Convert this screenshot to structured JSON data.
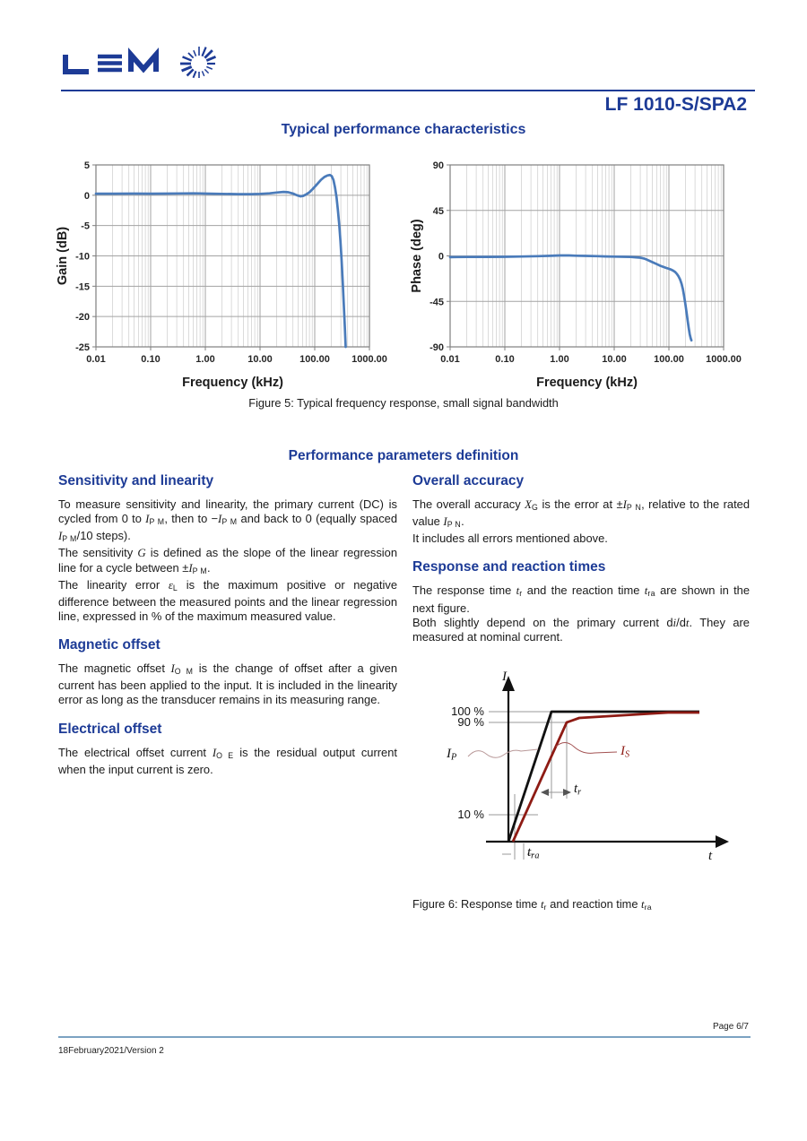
{
  "page": {
    "brand": "LEM",
    "product": "LF 1010-S/SPA2",
    "section1_title": "Typical performance characteristics",
    "figure5_caption": "Figure 5: Typical frequency response, small signal bandwidth",
    "section2_title": "Performance parameters definition",
    "footer": {
      "page": "Page 6/7",
      "version": "18February2021/Version 2"
    }
  },
  "colors": {
    "accent_blue": "#1d3b96",
    "curve_blue": "#4a7bba",
    "figure_red": "#8e1b14",
    "footer_line": "#7ba2c2",
    "grid_minor": "#cccccc",
    "grid_major": "#a3a3a3"
  },
  "chart_data": [
    {
      "type": "line",
      "title": "",
      "xlabel": "Frequency (kHz)",
      "ylabel": "Gain (dB)",
      "xscale": "log",
      "xlim": [
        0.01,
        1000
      ],
      "ylim": [
        -25,
        5
      ],
      "yticks": [
        5,
        0,
        -5,
        -10,
        -15,
        -20,
        -25
      ],
      "xticks": [
        "0.01",
        "0.10",
        "1.00",
        "10.00",
        "100.00",
        "1000.00"
      ],
      "grid": true,
      "legend": "none",
      "series": [
        {
          "name": "Gain",
          "color": "#4a7bba",
          "points": [
            [
              0.01,
              0.25
            ],
            [
              0.02,
              0.25
            ],
            [
              0.05,
              0.27
            ],
            [
              0.1,
              0.25
            ],
            [
              0.2,
              0.27
            ],
            [
              0.4,
              0.3
            ],
            [
              0.6,
              0.32
            ],
            [
              0.8,
              0.3
            ],
            [
              1,
              0.27
            ],
            [
              2,
              0.22
            ],
            [
              4,
              0.18
            ],
            [
              7,
              0.18
            ],
            [
              10,
              0.22
            ],
            [
              15,
              0.32
            ],
            [
              20,
              0.45
            ],
            [
              27,
              0.55
            ],
            [
              33,
              0.5
            ],
            [
              40,
              0.28
            ],
            [
              47,
              0
            ],
            [
              55,
              -0.18
            ],
            [
              62,
              -0.1
            ],
            [
              70,
              0.15
            ],
            [
              80,
              0.5
            ],
            [
              90,
              0.95
            ],
            [
              100,
              1.4
            ],
            [
              115,
              2.0
            ],
            [
              130,
              2.55
            ],
            [
              150,
              3.0
            ],
            [
              170,
              3.25
            ],
            [
              190,
              3.35
            ],
            [
              205,
              3.15
            ],
            [
              220,
              2.5
            ],
            [
              235,
              1.3
            ],
            [
              250,
              -0.3
            ],
            [
              265,
              -2.4
            ],
            [
              280,
              -4.8
            ],
            [
              295,
              -7.6
            ],
            [
              310,
              -10.8
            ],
            [
              325,
              -14.2
            ],
            [
              340,
              -18
            ],
            [
              355,
              -21.8
            ],
            [
              368,
              -25
            ]
          ]
        }
      ]
    },
    {
      "type": "line",
      "title": "",
      "xlabel": "Frequency (kHz)",
      "ylabel": "Phase (deg)",
      "xscale": "log",
      "xlim": [
        0.01,
        1000
      ],
      "ylim": [
        -90,
        90
      ],
      "yticks": [
        90,
        45,
        0,
        -45,
        -90
      ],
      "xticks": [
        "0.01",
        "0.10",
        "1.00",
        "10.00",
        "100.00",
        "1000.00"
      ],
      "grid": true,
      "legend": "none",
      "series": [
        {
          "name": "Phase",
          "color": "#4a7bba",
          "points": [
            [
              0.01,
              -1.2
            ],
            [
              0.02,
              -1.1
            ],
            [
              0.05,
              -1.0
            ],
            [
              0.1,
              -0.9
            ],
            [
              0.2,
              -0.6
            ],
            [
              0.4,
              -0.3
            ],
            [
              0.7,
              0.1
            ],
            [
              1,
              0.4
            ],
            [
              1.5,
              0.4
            ],
            [
              2,
              0.2
            ],
            [
              3,
              0
            ],
            [
              5,
              -0.3
            ],
            [
              7,
              -0.5
            ],
            [
              10,
              -0.7
            ],
            [
              15,
              -0.9
            ],
            [
              20,
              -1.1
            ],
            [
              25,
              -1.4
            ],
            [
              30,
              -1.8
            ],
            [
              35,
              -2.6
            ],
            [
              40,
              -3.8
            ],
            [
              50,
              -6.2
            ],
            [
              60,
              -8.2
            ],
            [
              70,
              -9.8
            ],
            [
              80,
              -11
            ],
            [
              90,
              -12
            ],
            [
              100,
              -12.8
            ],
            [
              110,
              -13.6
            ],
            [
              120,
              -14.6
            ],
            [
              130,
              -16
            ],
            [
              140,
              -17.8
            ],
            [
              150,
              -20.2
            ],
            [
              160,
              -23.4
            ],
            [
              170,
              -27.6
            ],
            [
              180,
              -33
            ],
            [
              190,
              -40
            ],
            [
              200,
              -48
            ],
            [
              210,
              -56
            ],
            [
              220,
              -64
            ],
            [
              230,
              -71.5
            ],
            [
              240,
              -77.5
            ],
            [
              250,
              -81.5
            ],
            [
              258,
              -83.5
            ]
          ]
        }
      ]
    }
  ],
  "sections": {
    "sensitivity": {
      "heading": "Sensitivity and linearity",
      "p1": [
        [
          "n",
          "To measure sensitivity and linearity, the primary current (DC) is cycled from 0 to "
        ],
        [
          "i",
          "I"
        ],
        [
          "s",
          "P M"
        ],
        [
          "n",
          ", then to −"
        ],
        [
          "i",
          "I"
        ],
        [
          "s",
          "P M"
        ],
        [
          "n",
          " and back to 0 (equally spaced "
        ],
        [
          "i",
          "I"
        ],
        [
          "s",
          "P M"
        ],
        [
          "n",
          "/10 steps)."
        ]
      ],
      "p2": [
        [
          "n",
          "The sensitivity "
        ],
        [
          "i",
          "G"
        ],
        [
          "n",
          " is defined as the slope of the linear regression line for a cycle between ±"
        ],
        [
          "i",
          "I"
        ],
        [
          "s",
          "P M"
        ],
        [
          "n",
          "."
        ]
      ],
      "p3": [
        [
          "n",
          "The linearity error "
        ],
        [
          "i",
          "ε"
        ],
        [
          "s",
          "L"
        ],
        [
          "n",
          " is the maximum positive or negative difference between the measured points and the linear regression line, expressed in % of the maximum measured value."
        ]
      ]
    },
    "magnetic": {
      "heading": "Magnetic offset",
      "p1": [
        [
          "n",
          "The magnetic offset "
        ],
        [
          "i",
          "I"
        ],
        [
          "s",
          "O M"
        ],
        [
          "n",
          " is the change of offset after a given current has been applied to the input. It is included in the linearity error as long as the transducer remains in its measuring range."
        ]
      ]
    },
    "electrical": {
      "heading": "Electrical offset",
      "p1": [
        [
          "n",
          "The electrical offset current "
        ],
        [
          "i",
          "I"
        ],
        [
          "s",
          "O E"
        ],
        [
          "n",
          " is the residual output current when the input current is zero."
        ]
      ]
    },
    "accuracy": {
      "heading": "Overall accuracy",
      "p1": [
        [
          "n",
          "The overall accuracy "
        ],
        [
          "i",
          "X"
        ],
        [
          "s",
          "G"
        ],
        [
          "n",
          " is the error at ±"
        ],
        [
          "i",
          "I"
        ],
        [
          "s",
          "P N"
        ],
        [
          "n",
          ", relative to the rated value "
        ],
        [
          "i",
          "I"
        ],
        [
          "s",
          "P N"
        ],
        [
          "n",
          "."
        ]
      ],
      "p2": [
        [
          "n",
          "It includes all errors mentioned above."
        ]
      ]
    },
    "response": {
      "heading": "Response and reaction times",
      "p1": [
        [
          "n",
          "The response time "
        ],
        [
          "i",
          "t"
        ],
        [
          "s",
          "r"
        ],
        [
          "n",
          " and the reaction time "
        ],
        [
          "i",
          "t"
        ],
        [
          "s",
          "ra"
        ],
        [
          "n",
          " are shown in the next figure."
        ]
      ],
      "p2": [
        [
          "n",
          "Both slightly depend on the primary current d"
        ],
        [
          "i",
          "i"
        ],
        [
          "n",
          "/d"
        ],
        [
          "i",
          "t"
        ],
        [
          "n",
          ". They are measured at nominal current."
        ]
      ]
    }
  },
  "figure6": {
    "i_axis": "I",
    "t_axis": "t",
    "p100": "100 %",
    "p90": "90 %",
    "p10": "10 %",
    "ip": [
      [
        "i",
        "I"
      ],
      [
        "s",
        "P"
      ]
    ],
    "is": [
      [
        "i",
        "I"
      ],
      [
        "s",
        "S"
      ]
    ],
    "tr": [
      [
        "i",
        "t"
      ],
      [
        "s",
        "r"
      ]
    ],
    "tra": [
      [
        "i",
        "t"
      ],
      [
        "s",
        "ra"
      ]
    ],
    "caption": [
      [
        "n",
        "Figure 6: Response time "
      ],
      [
        "i",
        "t"
      ],
      [
        "s",
        "r"
      ],
      [
        "n",
        " and reaction time "
      ],
      [
        "i",
        "t"
      ],
      [
        "s",
        "ra"
      ]
    ]
  }
}
